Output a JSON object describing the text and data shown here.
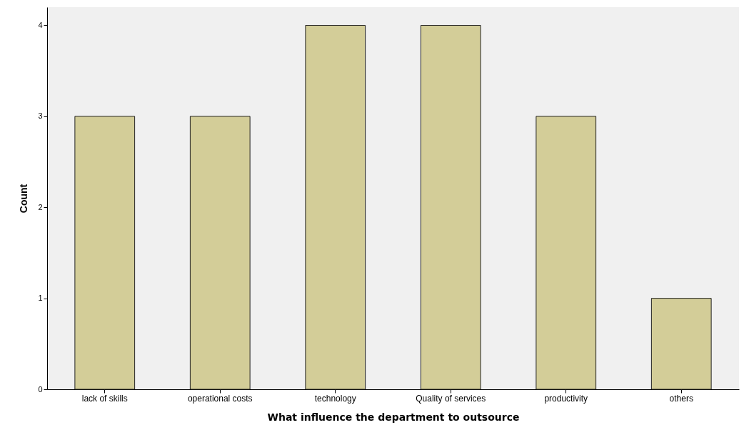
{
  "chart_data": {
    "type": "bar",
    "xlabel": "What influence the department to outsource",
    "ylabel": "Count",
    "categories": [
      "lack of skills",
      "operational costs",
      "technology",
      "Quality of services",
      "productivity",
      "others"
    ],
    "values": [
      3,
      3,
      4,
      4,
      3,
      1
    ],
    "color": "#d3cd98",
    "ylim": [
      0,
      4.2
    ],
    "yticks": [
      0,
      1,
      2,
      3,
      4
    ],
    "grid": false
  }
}
